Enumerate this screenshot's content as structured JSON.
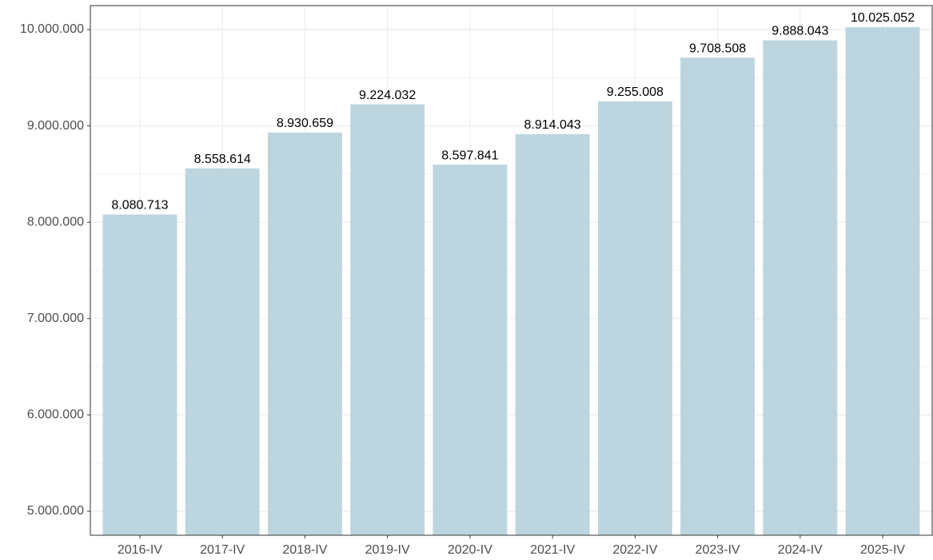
{
  "chart_data": {
    "type": "bar",
    "categories": [
      "2016-IV",
      "2017-IV",
      "2018-IV",
      "2019-IV",
      "2020-IV",
      "2021-IV",
      "2022-IV",
      "2023-IV",
      "2024-IV",
      "2025-IV"
    ],
    "values": [
      8080713,
      8558614,
      8930659,
      9224032,
      8597841,
      8914043,
      9255008,
      9708508,
      9888043,
      10025052
    ],
    "value_labels": [
      "8.080.713",
      "8.558.614",
      "8.930.659",
      "9.224.032",
      "8.597.841",
      "8.914.043",
      "9.255.008",
      "9.708.508",
      "9.888.043",
      "10.025.052"
    ],
    "color": "#b9d3dc",
    "ylim": [
      4751000,
      10249000
    ],
    "yticks": [
      {
        "value": 5000000,
        "label": "5.000.000"
      },
      {
        "value": 6000000,
        "label": "6.000.000"
      },
      {
        "value": 7000000,
        "label": "7.000.000"
      },
      {
        "value": 8000000,
        "label": "8.000.000"
      },
      {
        "value": 9000000,
        "label": "9.000.000"
      },
      {
        "value": 10000000,
        "label": "10.000.000"
      }
    ],
    "grid": true
  }
}
